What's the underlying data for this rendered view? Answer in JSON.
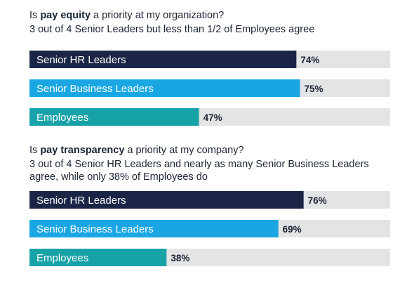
{
  "colors": {
    "senior_hr": "#1b2545",
    "senior_business": "#19a6e3",
    "employees": "#17a2a8",
    "track": "#e3e4e6"
  },
  "section1": {
    "question_before": "Is ",
    "question_bold": "pay equity",
    "question_after": " a priority at my organization?",
    "subtitle": "3 out of 4 Senior Leaders but less than 1/2 of Employees agree"
  },
  "section2": {
    "question_before": "Is ",
    "question_bold": "pay transparency",
    "question_after": " a priority at my company?",
    "subtitle": "3 out of 4 Senior HR Leaders and nearly as many Senior Business Leaders agree, while only 38% of Employees do"
  },
  "chart_data": [
    {
      "type": "bar",
      "orientation": "horizontal",
      "title": "Is pay equity a priority at my organization?",
      "categories": [
        "Senior HR Leaders",
        "Senior Business Leaders",
        "Employees"
      ],
      "values": [
        74,
        75,
        47
      ],
      "value_labels": [
        "74%",
        "75%",
        "47%"
      ],
      "xlim": [
        0,
        100
      ]
    },
    {
      "type": "bar",
      "orientation": "horizontal",
      "title": "Is pay transparency a priority at my company?",
      "categories": [
        "Senior HR Leaders",
        "Senior Business Leaders",
        "Employees"
      ],
      "values": [
        76,
        69,
        38
      ],
      "value_labels": [
        "76%",
        "69%",
        "38%"
      ],
      "xlim": [
        0,
        100
      ]
    }
  ]
}
